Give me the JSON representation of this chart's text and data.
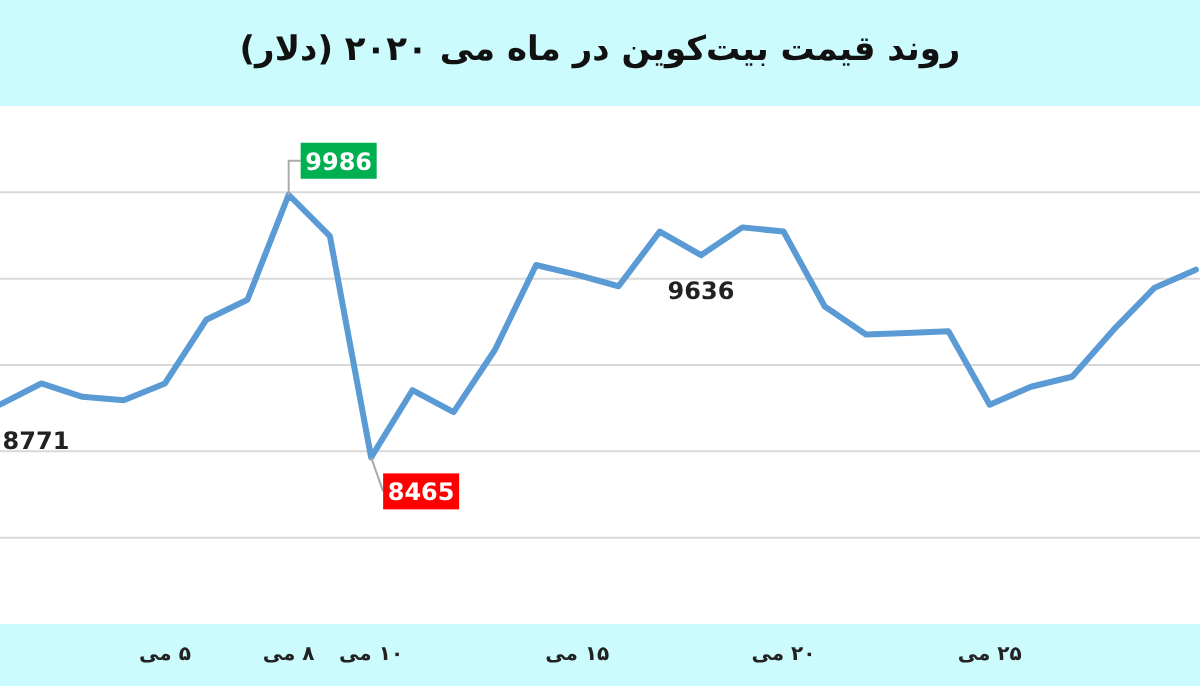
{
  "chart_data": {
    "type": "line",
    "title": "روند قیمت بیت‌کوین در ماه می ۲۰۲۰ (دلار)",
    "x": [
      1,
      2,
      3,
      4,
      5,
      6,
      7,
      8,
      9,
      10,
      11,
      12,
      13,
      14,
      15,
      16,
      17,
      18,
      19,
      20,
      21,
      22,
      23,
      24,
      25,
      26,
      27,
      28,
      29,
      30
    ],
    "series": [
      {
        "color": "#5b9bd5",
        "values": [
          8771,
          8893,
          8816,
          8796,
          8893,
          9262,
          9378,
          9986,
          9746,
          8465,
          8854,
          8727,
          9087,
          9579,
          9522,
          9456,
          9773,
          9636,
          9797,
          9773,
          9339,
          9177,
          9186,
          9195,
          8770,
          8874,
          8932,
          9203,
          9448,
          9552
        ],
        "value_labels": [
          "8771",
          null,
          null,
          null,
          null,
          null,
          null,
          "9986",
          null,
          "8465",
          null,
          null,
          null,
          null,
          null,
          null,
          null,
          "9636",
          null,
          null,
          null,
          null,
          null,
          null,
          null,
          null,
          null,
          null,
          null,
          null
        ]
      }
    ],
    "xlim": [
      1,
      30.1
    ],
    "xticks": [
      {
        "value": 5,
        "label": "۵ می"
      },
      {
        "value": 8,
        "label": "۸ می"
      },
      {
        "value": 10,
        "label": "۱۰ می"
      },
      {
        "value": 15,
        "label": "۱۵ می"
      },
      {
        "value": 20,
        "label": "۲۰ می"
      },
      {
        "value": 25,
        "label": "۲۵ می"
      }
    ],
    "ylim": [
      7500,
      10500
    ],
    "yticks": [
      {
        "value": 8000,
        "label": null
      },
      {
        "value": 8500,
        "label": null
      },
      {
        "value": 9000,
        "label": null
      },
      {
        "value": 9500,
        "label": null
      },
      {
        "value": 10000,
        "label": null
      }
    ],
    "grid": "y",
    "marker": "none",
    "line_style": "solid"
  }
}
